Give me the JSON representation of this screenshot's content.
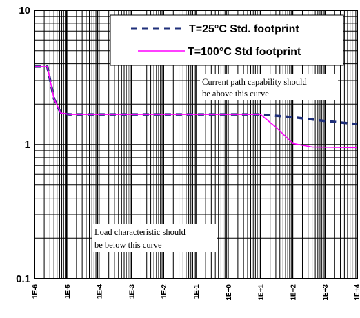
{
  "chart_data": {
    "type": "line",
    "x_scale": "log",
    "y_scale": "log",
    "xlim": [
      1e-06,
      10000
    ],
    "ylim": [
      0.1,
      10
    ],
    "x_tick_labels": [
      "1E-6",
      "1E-5",
      "1E-4",
      "1E-3",
      "1E-2",
      "1E-1",
      "1E+0",
      "1E+1",
      "1E+2",
      "1E+3",
      "1E+4"
    ],
    "y_tick_labels": [
      "10",
      "1",
      "0.1"
    ],
    "grid": true,
    "legend_position": "top-right",
    "series": [
      {
        "name": "T=25°C  Std. footprint",
        "style": "dashed",
        "color": "#1f2f7a",
        "points": [
          [
            1e-06,
            3.8
          ],
          [
            2.5e-06,
            3.8
          ],
          [
            4e-06,
            2.2
          ],
          [
            6.5e-06,
            1.72
          ],
          [
            1.2e-05,
            1.68
          ],
          [
            10,
            1.68
          ],
          [
            100,
            1.6
          ],
          [
            1000,
            1.5
          ],
          [
            10000,
            1.42
          ]
        ]
      },
      {
        "name": "T=100°C Std footprint",
        "style": "solid",
        "color": "#ff00ff",
        "points": [
          [
            1e-06,
            3.8
          ],
          [
            2.5e-06,
            3.8
          ],
          [
            4e-06,
            2.2
          ],
          [
            6.5e-06,
            1.72
          ],
          [
            1.2e-05,
            1.68
          ],
          [
            10,
            1.68
          ],
          [
            30,
            1.35
          ],
          [
            100,
            1.02
          ],
          [
            400,
            0.96
          ],
          [
            10000,
            0.95
          ]
        ]
      }
    ],
    "annotations": [
      "Current path capability should be above this curve",
      "Load characteristic should be below this curve"
    ],
    "annotation_lines": {
      "upper": [
        "Current path capability should",
        "be above this curve"
      ],
      "lower": [
        "Load characteristic should",
        "be below this curve"
      ]
    }
  }
}
